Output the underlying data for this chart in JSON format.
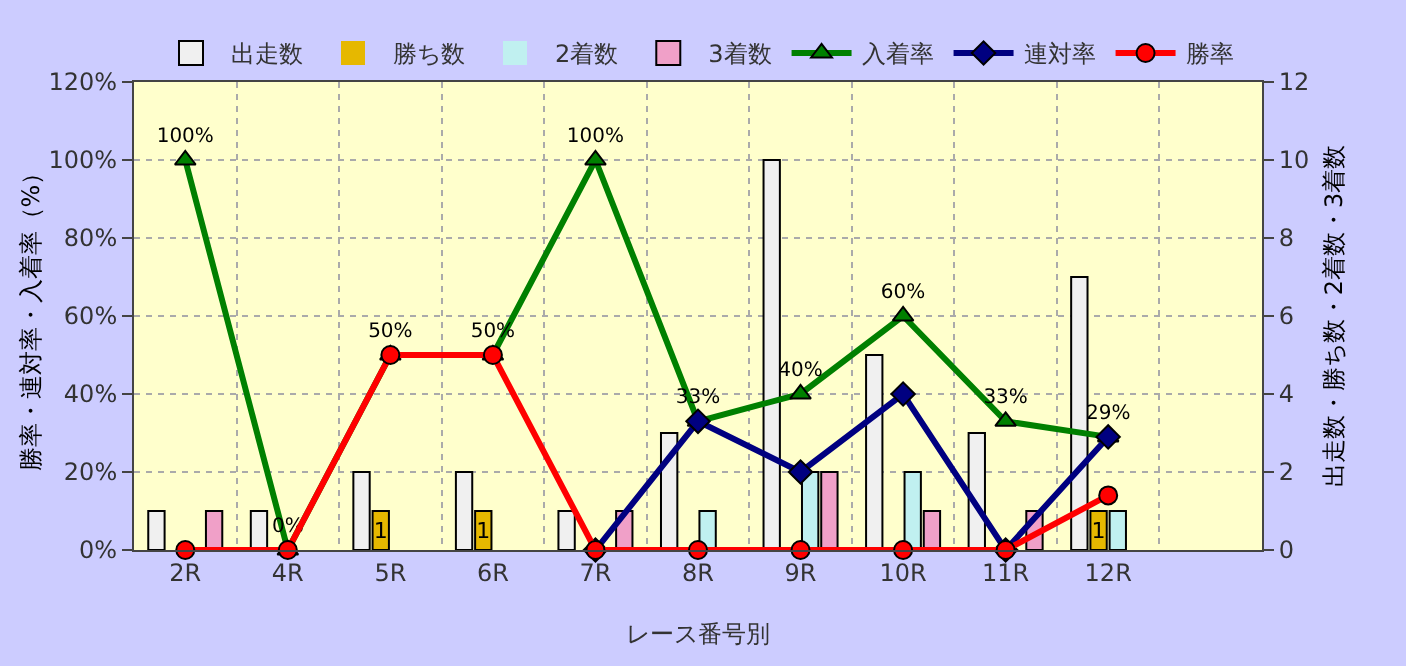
{
  "chart_data": {
    "type": "bar",
    "xlabel": "レース番号別",
    "ylabel": "勝率・連対率・入着率（%）",
    "y2label": "出走数・勝ち数・2着数・3着数",
    "categories": [
      "2R",
      "4R",
      "5R",
      "6R",
      "7R",
      "8R",
      "9R",
      "10R",
      "11R",
      "12R"
    ],
    "series": [
      {
        "name": "出走数",
        "axis": "y2",
        "color": "#f0f0f0",
        "values": [
          1,
          1,
          2,
          2,
          1,
          3,
          10,
          5,
          3,
          7
        ]
      },
      {
        "name": "勝ち数",
        "axis": "y2",
        "color": "#e6b800",
        "values": [
          0,
          0,
          1,
          1,
          0,
          0,
          0,
          0,
          0,
          1
        ],
        "value_labels": [
          null,
          null,
          "1",
          "1",
          null,
          null,
          null,
          null,
          null,
          "1"
        ]
      },
      {
        "name": "2着数",
        "axis": "y2",
        "color": "#c0f0f0",
        "values": [
          0,
          0,
          0,
          0,
          0,
          1,
          2,
          2,
          0,
          1
        ]
      },
      {
        "name": "3着数",
        "axis": "y2",
        "color": "#f0a0c8",
        "values": [
          1,
          0,
          0,
          0,
          1,
          0,
          2,
          1,
          1,
          0
        ]
      },
      {
        "name": "入着率",
        "type": "line",
        "marker": "triangle",
        "color": "#008000",
        "values": [
          100,
          0,
          50,
          50,
          100,
          33,
          40,
          60,
          33,
          29
        ],
        "value_labels": [
          "100%",
          "0%",
          "50%",
          "50%",
          "100%",
          "33%",
          "40%",
          "60%",
          "33%",
          "29%"
        ]
      },
      {
        "name": "連対率",
        "type": "line",
        "marker": "diamond",
        "color": "#000080",
        "values": [
          null,
          null,
          null,
          null,
          0,
          33,
          20,
          40,
          0,
          29
        ]
      },
      {
        "name": "勝率",
        "type": "line",
        "marker": "circle",
        "color": "#ff0000",
        "values": [
          0,
          0,
          50,
          50,
          0,
          0,
          0,
          0,
          0,
          14
        ]
      }
    ],
    "ylim": [
      0,
      120
    ],
    "yticks": [
      {
        "value": 0,
        "label": "0%"
      },
      {
        "value": 20,
        "label": "20%"
      },
      {
        "value": 40,
        "label": "40%"
      },
      {
        "value": 60,
        "label": "60%"
      },
      {
        "value": 80,
        "label": "80%"
      },
      {
        "value": 100,
        "label": "100%"
      },
      {
        "value": 120,
        "label": "120%"
      }
    ],
    "y2lim": [
      0,
      12
    ],
    "y2ticks": [
      0,
      2,
      4,
      6,
      8,
      10,
      12
    ],
    "grid": true,
    "legend": "top",
    "line_style": "solid"
  }
}
